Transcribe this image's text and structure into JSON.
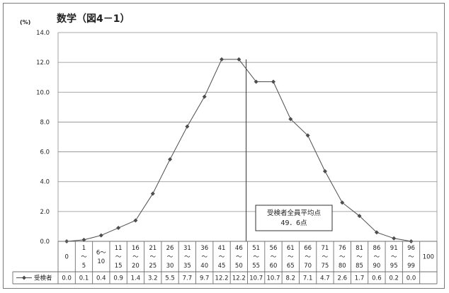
{
  "chart_data": {
    "type": "line",
    "title": "数学（図4－1）",
    "ylabel": "(%)",
    "ylim": [
      0,
      14
    ],
    "yticks": [
      "0.0",
      "2.0",
      "4.0",
      "6.0",
      "8.0",
      "10.0",
      "12.0",
      "14.0"
    ],
    "grid": true,
    "categories": [
      [
        "0"
      ],
      [
        "1",
        "～",
        "5"
      ],
      [
        "6～",
        "10"
      ],
      [
        "11",
        "～",
        "15"
      ],
      [
        "16",
        "～",
        "20"
      ],
      [
        "21",
        "～",
        "25"
      ],
      [
        "26",
        "～",
        "30"
      ],
      [
        "31",
        "～",
        "35"
      ],
      [
        "36",
        "～",
        "40"
      ],
      [
        "41",
        "～",
        "45"
      ],
      [
        "46",
        "～",
        "50"
      ],
      [
        "51",
        "～",
        "55"
      ],
      [
        "56",
        "～",
        "60"
      ],
      [
        "61",
        "～",
        "65"
      ],
      [
        "66",
        "～",
        "70"
      ],
      [
        "71",
        "～",
        "75"
      ],
      [
        "76",
        "～",
        "80"
      ],
      [
        "81",
        "～",
        "85"
      ],
      [
        "86",
        "～",
        "90"
      ],
      [
        "91",
        "～",
        "95"
      ],
      [
        "96",
        "～",
        "99"
      ],
      [
        "100"
      ]
    ],
    "series": [
      {
        "name": "受検者",
        "values": [
          0.0,
          0.1,
          0.4,
          0.9,
          1.4,
          3.2,
          5.5,
          7.7,
          9.7,
          12.2,
          12.2,
          10.7,
          10.7,
          8.2,
          7.1,
          4.7,
          2.6,
          1.7,
          0.6,
          0.2,
          0.0,
          null
        ],
        "labels": [
          "0.0",
          "0.1",
          "0.4",
          "0.9",
          "1.4",
          "3.2",
          "5.5",
          "7.7",
          "9.7",
          "12.2",
          "12.2",
          "10.7",
          "10.7",
          "8.2",
          "7.1",
          "4.7",
          "2.6",
          "1.7",
          "0.6",
          "0.2",
          "0.0",
          ""
        ]
      }
    ],
    "average": {
      "value": 49.6,
      "label_line1": "受検者全員平均点",
      "label_line2": "49．6点"
    },
    "colors": {
      "line": "#4d4d4d",
      "marker": "#4d4d4d",
      "grid": "#8c8c8c",
      "text": "#222222"
    }
  }
}
